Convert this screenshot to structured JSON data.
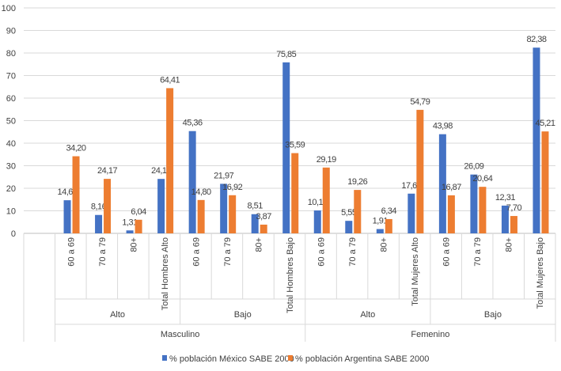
{
  "chart_data": {
    "type": "bar",
    "title": "",
    "xlabel": "",
    "ylabel": "",
    "ylim": [
      0,
      100
    ],
    "yticks": [
      "0",
      "10",
      "20",
      "30",
      "40",
      "50",
      "60",
      "70",
      "80",
      "90",
      "100"
    ],
    "grid": true,
    "legend_position": "bottom",
    "categories": [
      "",
      "60 a 69",
      "70 a 79",
      "80+",
      "Total Hombres Alto",
      "60 a 69",
      "70 a 79",
      "80+",
      "Total Hombres Bajo",
      "60 a 69",
      "70 a 79",
      "80+",
      "Total Mujeres Alto",
      "60 a 69",
      "70 a 79",
      "80+",
      "Total Mujeres Bajo"
    ],
    "level2_groups": [
      {
        "label": "Alto",
        "span": 4
      },
      {
        "label": "Bajo",
        "span": 4
      },
      {
        "label": "Alto",
        "span": 4
      },
      {
        "label": "Bajo",
        "span": 4
      }
    ],
    "level3_groups": [
      {
        "label": "Masculino",
        "span": 8
      },
      {
        "label": "Femenino",
        "span": 8
      }
    ],
    "series": [
      {
        "name": "% población México SABE 2000",
        "color": "#4472C4",
        "values": [
          null,
          14.69,
          8.16,
          1.31,
          24.15,
          45.36,
          21.97,
          8.51,
          75.85,
          10.16,
          5.55,
          1.91,
          17.62,
          43.98,
          26.09,
          12.31,
          82.38
        ],
        "labels": [
          null,
          "14,69",
          "8,16",
          "1,31",
          "24,15",
          "45,36",
          "21,97",
          "8,51",
          "75,85",
          "10,16",
          "5,55",
          "1,91",
          "17,62",
          "43,98",
          "26,09",
          "12,31",
          "82,38"
        ]
      },
      {
        "name": "% población Argentina SABE 2000",
        "color": "#ED7D31",
        "values": [
          null,
          34.2,
          24.17,
          6.04,
          64.41,
          14.8,
          16.92,
          3.87,
          35.59,
          29.19,
          19.26,
          6.34,
          54.79,
          16.87,
          20.64,
          7.7,
          45.21
        ],
        "labels": [
          null,
          "34,20",
          "24,17",
          "6,04",
          "64,41",
          "14,80",
          "16,92",
          "3,87",
          "35,59",
          "29,19",
          "19,26",
          "6,34",
          "54,79",
          "16,87",
          "20,64",
          "7,70",
          "45,21"
        ]
      }
    ]
  }
}
